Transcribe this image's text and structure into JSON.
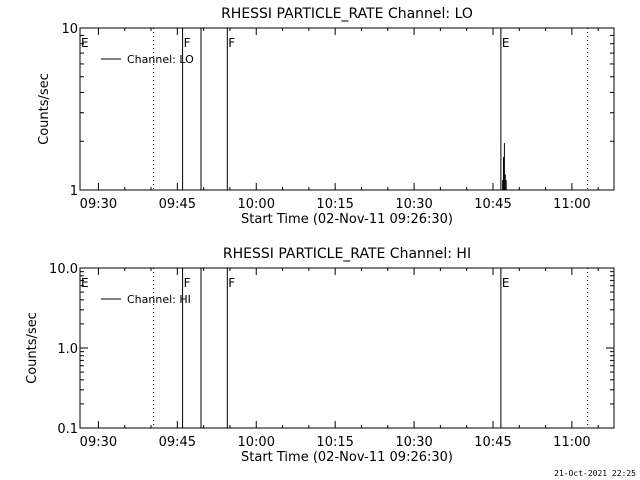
{
  "footer_timestamp": "21-Oct-2021 22:25",
  "chart_data": [
    {
      "type": "line",
      "title": "RHESSI PARTICLE_RATE Channel: LO",
      "xlabel": "Start Time (02-Nov-11 09:26:30)",
      "ylabel": "Counts/sec",
      "yscale": "log",
      "ylim": [
        1,
        10
      ],
      "y_ticks": [
        {
          "v": 1,
          "label": "1"
        },
        {
          "v": 10,
          "label": "10"
        }
      ],
      "xlim": [
        "09:26:30",
        "11:08:00"
      ],
      "x_ticks": [
        "09:30",
        "09:45",
        "10:00",
        "10:15",
        "10:30",
        "10:45",
        "11:00"
      ],
      "legend": {
        "label": "Channel: LO",
        "position": "top-left"
      },
      "flags": [
        {
          "label": "E",
          "time": "09:26:30",
          "style": "solid"
        },
        {
          "label": "",
          "time": "09:40:30",
          "style": "dotted"
        },
        {
          "label": "F",
          "time": "09:46:00",
          "style": "solid"
        },
        {
          "label": "",
          "time": "09:49:30",
          "style": "solid"
        },
        {
          "label": "F",
          "time": "09:54:30",
          "style": "solid"
        },
        {
          "label": "E",
          "time": "10:46:30",
          "style": "solid"
        },
        {
          "label": "",
          "time": "11:03:00",
          "style": "dotted"
        }
      ],
      "series": [
        {
          "label": "Channel: LO",
          "points": [
            {
              "t": "10:46:50",
              "y": 1.15
            },
            {
              "t": "10:47:00",
              "y": 1.6
            },
            {
              "t": "10:47:10",
              "y": 1.95
            },
            {
              "t": "10:47:20",
              "y": 1.25
            },
            {
              "t": "10:47:30",
              "y": 1.15
            }
          ]
        }
      ]
    },
    {
      "type": "line",
      "title": "RHESSI PARTICLE_RATE Channel: HI",
      "xlabel": "Start Time (02-Nov-11 09:26:30)",
      "ylabel": "Counts/sec",
      "yscale": "log",
      "ylim": [
        0.1,
        10
      ],
      "y_ticks": [
        {
          "v": 0.1,
          "label": "0.1"
        },
        {
          "v": 1,
          "label": "1.0"
        },
        {
          "v": 10,
          "label": "10.0"
        }
      ],
      "xlim": [
        "09:26:30",
        "11:08:00"
      ],
      "x_ticks": [
        "09:30",
        "09:45",
        "10:00",
        "10:15",
        "10:30",
        "10:45",
        "11:00"
      ],
      "legend": {
        "label": "Channel: HI",
        "position": "top-left"
      },
      "flags": [
        {
          "label": "E",
          "time": "09:26:30",
          "style": "solid"
        },
        {
          "label": "",
          "time": "09:40:30",
          "style": "dotted"
        },
        {
          "label": "F",
          "time": "09:46:00",
          "style": "solid"
        },
        {
          "label": "",
          "time": "09:49:30",
          "style": "solid"
        },
        {
          "label": "F",
          "time": "09:54:30",
          "style": "solid"
        },
        {
          "label": "E",
          "time": "10:46:30",
          "style": "solid"
        },
        {
          "label": "",
          "time": "11:03:00",
          "style": "dotted"
        }
      ],
      "series": [
        {
          "label": "Channel: HI",
          "points": []
        }
      ]
    }
  ]
}
